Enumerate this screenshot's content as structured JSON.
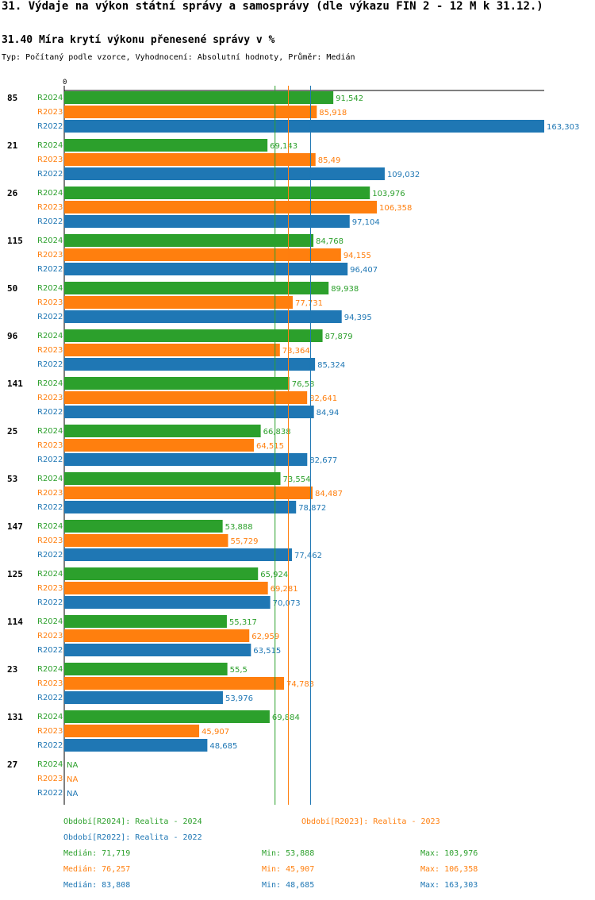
{
  "page": {
    "title": "31. Výdaje na výkon státní správy a samosprávy (dle výkazu FIN 2 - 12 M k 31.12.)"
  },
  "chart_data": {
    "type": "bar",
    "orientation": "horizontal",
    "title": "31.40 Míra krytí výkonu přenesené správy v %",
    "subtitle": "Typ: Počítaný podle vzorce, Vyhodnocení: Absolutní hodnoty, Průměr: Medián",
    "axis_zero_label": "0",
    "xlim": [
      0,
      163.303
    ],
    "colors": {
      "R2024": "#2ca02c",
      "R2023": "#ff7f0e",
      "R2022": "#1f77b4"
    },
    "series": [
      "R2024",
      "R2023",
      "R2022"
    ],
    "groups": [
      {
        "id": "85",
        "values": {
          "R2024": 91.542,
          "R2023": 85.918,
          "R2022": 163.303
        },
        "labels": {
          "R2024": "91,542",
          "R2023": "85,918",
          "R2022": "163,303"
        }
      },
      {
        "id": "21",
        "values": {
          "R2024": 69.143,
          "R2023": 85.49,
          "R2022": 109.032
        },
        "labels": {
          "R2024": "69,143",
          "R2023": "85,49",
          "R2022": "109,032"
        }
      },
      {
        "id": "26",
        "values": {
          "R2024": 103.976,
          "R2023": 106.358,
          "R2022": 97.104
        },
        "labels": {
          "R2024": "103,976",
          "R2023": "106,358",
          "R2022": "97,104"
        }
      },
      {
        "id": "115",
        "values": {
          "R2024": 84.768,
          "R2023": 94.155,
          "R2022": 96.407
        },
        "labels": {
          "R2024": "84,768",
          "R2023": "94,155",
          "R2022": "96,407"
        }
      },
      {
        "id": "50",
        "values": {
          "R2024": 89.938,
          "R2023": 77.731,
          "R2022": 94.395
        },
        "labels": {
          "R2024": "89,938",
          "R2023": "77,731",
          "R2022": "94,395"
        }
      },
      {
        "id": "96",
        "values": {
          "R2024": 87.879,
          "R2023": 73.364,
          "R2022": 85.324
        },
        "labels": {
          "R2024": "87,879",
          "R2023": "73,364",
          "R2022": "85,324"
        }
      },
      {
        "id": "141",
        "values": {
          "R2024": 76.58,
          "R2023": 82.641,
          "R2022": 84.94
        },
        "labels": {
          "R2024": "76,58",
          "R2023": "82,641",
          "R2022": "84,94"
        }
      },
      {
        "id": "25",
        "values": {
          "R2024": 66.838,
          "R2023": 64.515,
          "R2022": 82.677
        },
        "labels": {
          "R2024": "66,838",
          "R2023": "64,515",
          "R2022": "82,677"
        }
      },
      {
        "id": "53",
        "values": {
          "R2024": 73.554,
          "R2023": 84.487,
          "R2022": 78.872
        },
        "labels": {
          "R2024": "73,554",
          "R2023": "84,487",
          "R2022": "78,872"
        }
      },
      {
        "id": "147",
        "values": {
          "R2024": 53.888,
          "R2023": 55.729,
          "R2022": 77.462
        },
        "labels": {
          "R2024": "53,888",
          "R2023": "55,729",
          "R2022": "77,462"
        }
      },
      {
        "id": "125",
        "values": {
          "R2024": 65.924,
          "R2023": 69.281,
          "R2022": 70.073
        },
        "labels": {
          "R2024": "65,924",
          "R2023": "69,281",
          "R2022": "70,073"
        }
      },
      {
        "id": "114",
        "values": {
          "R2024": 55.317,
          "R2023": 62.959,
          "R2022": 63.515
        },
        "labels": {
          "R2024": "55,317",
          "R2023": "62,959",
          "R2022": "63,515"
        }
      },
      {
        "id": "23",
        "values": {
          "R2024": 55.5,
          "R2023": 74.783,
          "R2022": 53.976
        },
        "labels": {
          "R2024": "55,5",
          "R2023": "74,783",
          "R2022": "53,976"
        }
      },
      {
        "id": "131",
        "values": {
          "R2024": 69.884,
          "R2023": 45.907,
          "R2022": 48.685
        },
        "labels": {
          "R2024": "69,884",
          "R2023": "45,907",
          "R2022": "48,685"
        }
      },
      {
        "id": "27",
        "values": {
          "R2024": null,
          "R2023": null,
          "R2022": null
        },
        "labels": {
          "R2024": "NA",
          "R2023": "NA",
          "R2022": "NA"
        }
      }
    ],
    "medians": {
      "R2024": 71.719,
      "R2023": 76.257,
      "R2022": 83.808
    }
  },
  "legend": {
    "periods": [
      {
        "series": "R2024",
        "label": "Období[R2024]: Realita - 2024"
      },
      {
        "series": "R2023",
        "label": "Období[R2023]: Realita - 2023"
      },
      {
        "series": "R2022",
        "label": "Období[R2022]: Realita - 2022"
      }
    ],
    "stats": [
      {
        "series": "R2024",
        "median": "Medián: 71,719",
        "min": "Min: 53,888",
        "max": "Max: 103,976"
      },
      {
        "series": "R2023",
        "median": "Medián: 76,257",
        "min": "Min: 45,907",
        "max": "Max: 106,358"
      },
      {
        "series": "R2022",
        "median": "Medián: 83,808",
        "min": "Min: 48,685",
        "max": "Max: 163,303"
      }
    ]
  }
}
